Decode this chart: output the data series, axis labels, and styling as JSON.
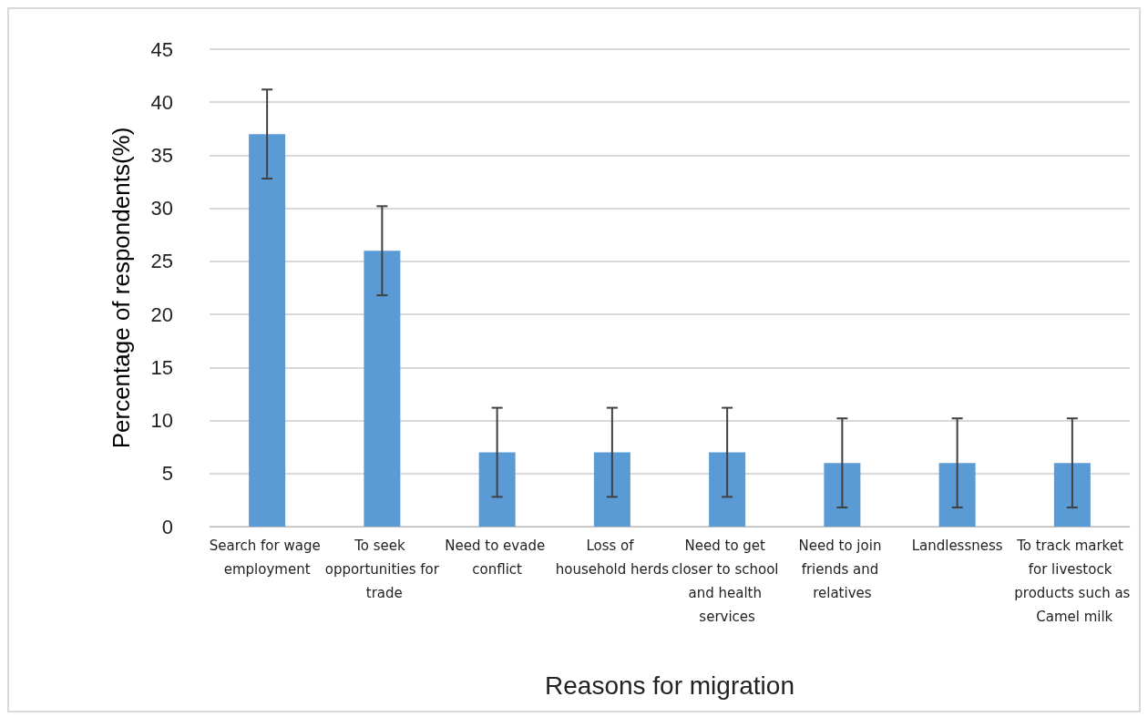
{
  "chart_data": {
    "type": "bar",
    "xlabel": "Reasons for migration",
    "ylabel": "Percentage of respondents(%)",
    "categories": [
      "Search for wage employment",
      "To seek opportunities for trade",
      "Need to evade conflict",
      "Loss of household herds",
      "Need to get closer to school and health services",
      "Need to join friends and relatives",
      "Landlessness",
      "To track market for livestock products such as Camel milk"
    ],
    "values": [
      37,
      26,
      7,
      7,
      7,
      6,
      6,
      6
    ],
    "errors": [
      4.2,
      4.2,
      4.2,
      4.2,
      4.2,
      4.2,
      4.2,
      4.2
    ],
    "color": "#5b9bd5",
    "ylim": [
      0,
      45
    ],
    "yticks": [
      0,
      5,
      10,
      15,
      20,
      25,
      30,
      35,
      40,
      45
    ],
    "grid": "y"
  }
}
